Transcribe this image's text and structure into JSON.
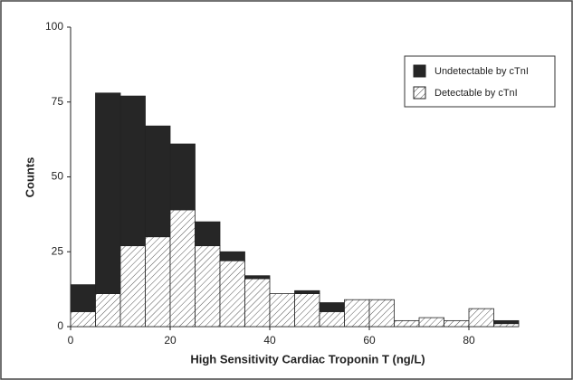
{
  "chart_data": {
    "type": "histogram",
    "x_label": "High Sensitivity Cardiac Troponin T (ng/L)",
    "y_label": "Counts",
    "bins": [
      0,
      5,
      10,
      15,
      20,
      25,
      30,
      35,
      40,
      45,
      50,
      55,
      60,
      65,
      70,
      75,
      80,
      85,
      90
    ],
    "stacked": true,
    "series": [
      {
        "name": "Undetectable by cTnI",
        "color": "#262626",
        "pattern": "solid",
        "values": [
          9,
          67,
          50,
          37,
          22,
          8,
          3,
          1,
          0,
          1,
          3,
          0,
          0,
          0,
          0,
          0,
          0,
          1
        ]
      },
      {
        "name": "Detectable by cTnI",
        "color": "#555555",
        "pattern": "hatch",
        "values": [
          5,
          11,
          27,
          30,
          39,
          27,
          22,
          16,
          11,
          11,
          5,
          9,
          9,
          2,
          3,
          2,
          6,
          1
        ]
      }
    ],
    "stack_order": [
      1,
      0
    ],
    "xlim": [
      0,
      90
    ],
    "xticks": [
      0,
      20,
      40,
      60,
      80
    ],
    "ylim": [
      0,
      100
    ],
    "yticks": [
      0,
      25,
      50,
      75,
      100
    ],
    "grid": false,
    "legend": "upper right"
  }
}
